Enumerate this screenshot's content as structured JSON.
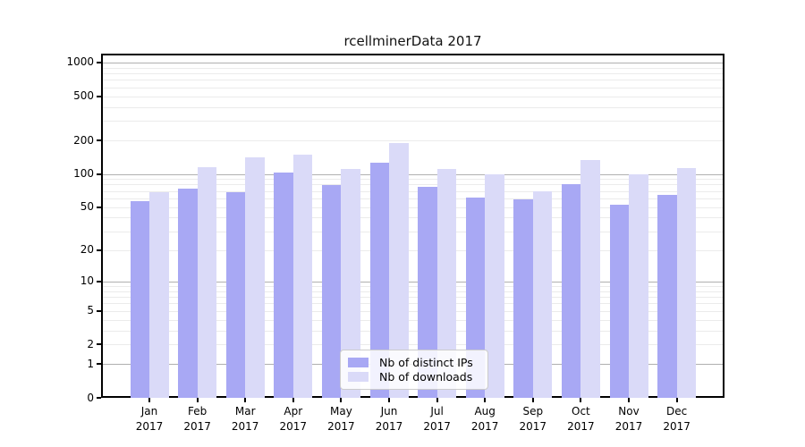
{
  "title": "rcellminerData 2017",
  "legend": {
    "items": [
      {
        "label": "Nb of distinct IPs",
        "color": "#a8a8f4"
      },
      {
        "label": "Nb of downloads",
        "color": "#dadaf8"
      }
    ]
  },
  "colors": {
    "series_dark": "#a8a8f4",
    "series_light": "#dadaf8",
    "grid_major": "#b0b0b0",
    "grid_minor": "#ebebeb",
    "spine": "#000000"
  },
  "xaxis": {
    "labels": [
      {
        "month": "Jan",
        "year": "2017"
      },
      {
        "month": "Feb",
        "year": "2017"
      },
      {
        "month": "Mar",
        "year": "2017"
      },
      {
        "month": "Apr",
        "year": "2017"
      },
      {
        "month": "May",
        "year": "2017"
      },
      {
        "month": "Jun",
        "year": "2017"
      },
      {
        "month": "Jul",
        "year": "2017"
      },
      {
        "month": "Aug",
        "year": "2017"
      },
      {
        "month": "Sep",
        "year": "2017"
      },
      {
        "month": "Oct",
        "year": "2017"
      },
      {
        "month": "Nov",
        "year": "2017"
      },
      {
        "month": "Dec",
        "year": "2017"
      }
    ]
  },
  "yaxis": {
    "tick_labels": [
      "1000",
      "500",
      "200",
      "100",
      "50",
      "20",
      "10",
      "5",
      "2",
      "1",
      "0"
    ],
    "tick_values": [
      1000,
      500,
      200,
      100,
      50,
      20,
      10,
      5,
      2,
      1,
      0
    ]
  },
  "chart_data": {
    "type": "bar",
    "title": "rcellminerData 2017",
    "scale": "log1p",
    "categories": [
      "Jan 2017",
      "Feb 2017",
      "Mar 2017",
      "Apr 2017",
      "May 2017",
      "Jun 2017",
      "Jul 2017",
      "Aug 2017",
      "Sep 2017",
      "Oct 2017",
      "Nov 2017",
      "Dec 2017"
    ],
    "series": [
      {
        "name": "Nb of distinct IPs",
        "color": "#a8a8f4",
        "values": [
          57,
          73,
          68,
          103,
          79,
          127,
          77,
          61,
          59,
          81,
          53,
          65
        ]
      },
      {
        "name": "Nb of downloads",
        "color": "#dadaf8",
        "values": [
          68,
          116,
          142,
          148,
          111,
          191,
          110,
          100,
          70,
          133,
          100,
          113
        ]
      }
    ],
    "y_ticks": [
      0,
      1,
      2,
      5,
      10,
      20,
      50,
      100,
      200,
      500,
      1000
    ],
    "major_gridlines": [
      1,
      10,
      100,
      1000
    ],
    "minor_gridline_decades": [
      1,
      10,
      100
    ],
    "ylim": [
      0,
      1160
    ],
    "xlabel": "",
    "ylabel": "",
    "grid": true,
    "legend_position": "lower center"
  }
}
